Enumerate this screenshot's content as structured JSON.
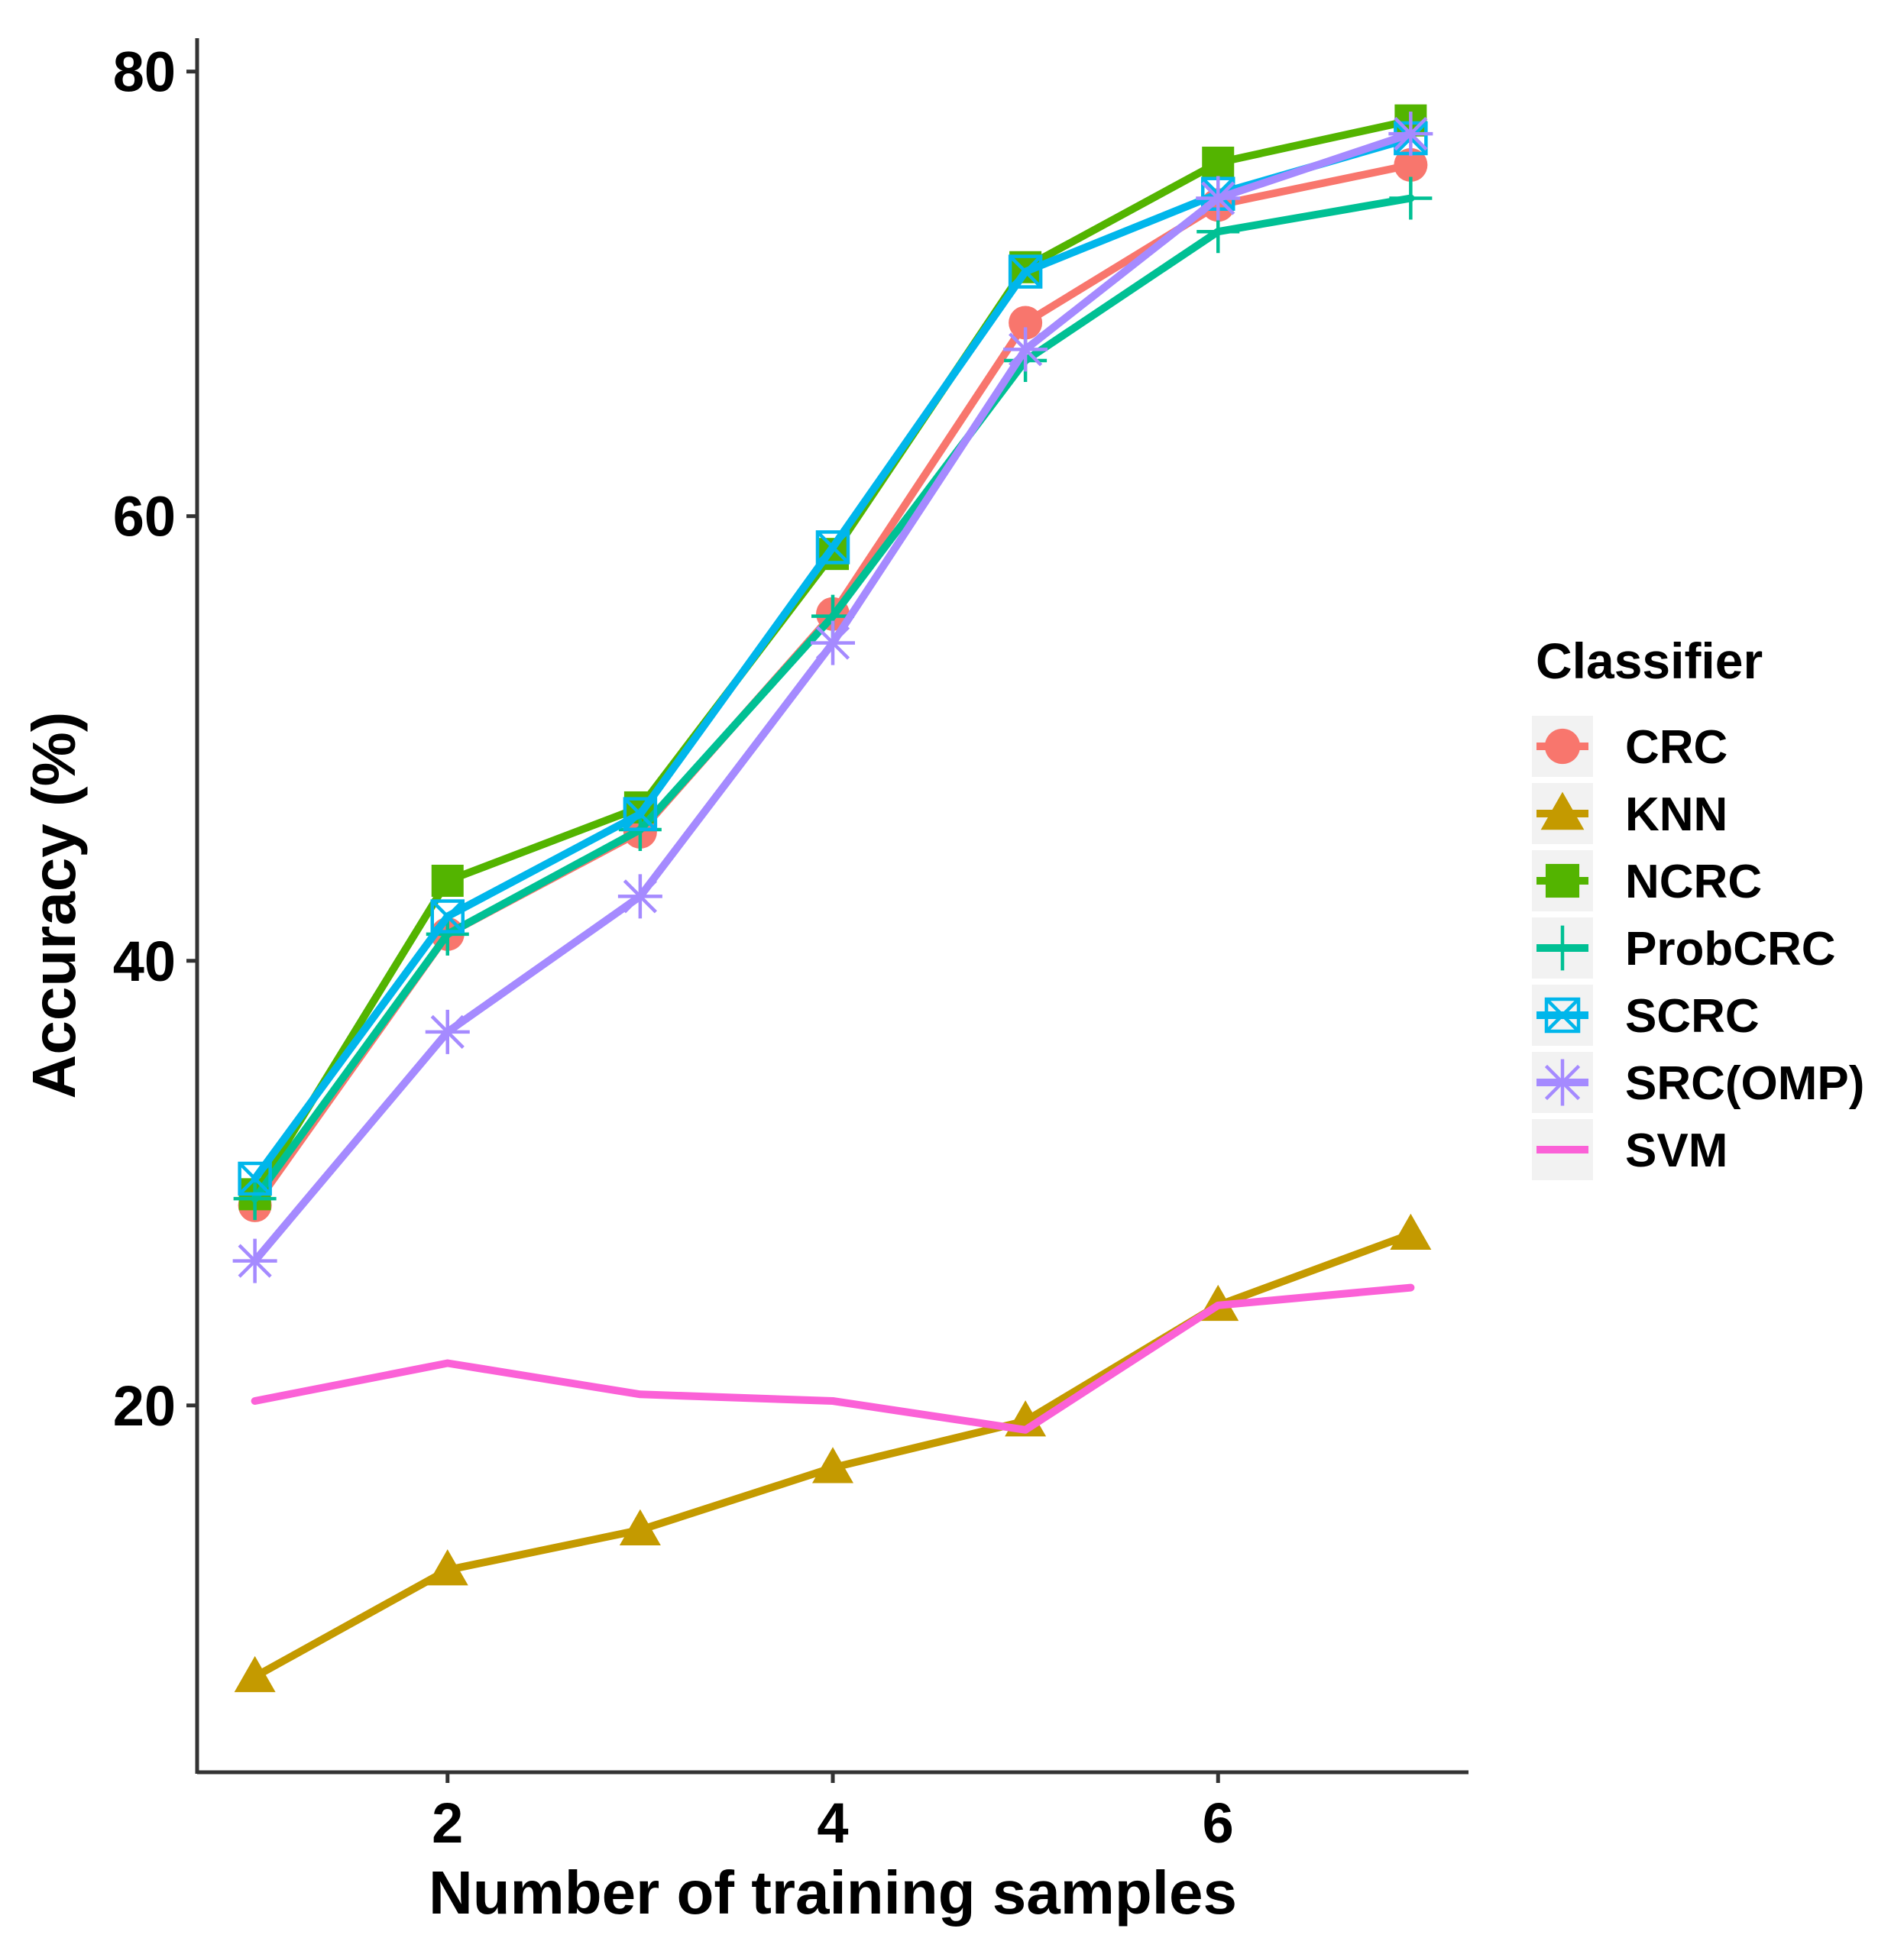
{
  "chart_data": {
    "type": "line",
    "title": "",
    "xlabel": "Number of training samples",
    "ylabel": "Accuracy (%)",
    "xlim": [
      0.7,
      7.3
    ],
    "ylim": [
      3.5,
      81.5
    ],
    "x_ticks": [
      2,
      4,
      6
    ],
    "x_tick_labels": [
      "2",
      "4",
      "6"
    ],
    "y_ticks": [
      20,
      40,
      60,
      80
    ],
    "y_tick_labels": [
      "20",
      "40",
      "60",
      "80"
    ],
    "grid": false,
    "legend": {
      "title": "Classifier",
      "position": "right"
    },
    "x": [
      1,
      2,
      3,
      4,
      5,
      6,
      7
    ],
    "series": [
      {
        "name": "CRC",
        "color": "#F8766D",
        "marker": "circle",
        "values": [
          29.0,
          41.2,
          45.8,
          55.6,
          68.7,
          74.0,
          75.8
        ]
      },
      {
        "name": "KNN",
        "color": "#C49A00",
        "marker": "triangle",
        "values": [
          7.8,
          12.6,
          14.4,
          17.2,
          19.3,
          24.5,
          27.7
        ]
      },
      {
        "name": "NCRC",
        "color": "#53B400",
        "marker": "square",
        "values": [
          29.5,
          43.6,
          46.9,
          58.3,
          71.2,
          75.9,
          77.8
        ]
      },
      {
        "name": "ProbCRC",
        "color": "#00C094",
        "marker": "plus",
        "values": [
          29.3,
          41.2,
          45.9,
          55.5,
          67.0,
          72.8,
          74.3
        ]
      },
      {
        "name": "SCRC",
        "color": "#00B6EB",
        "marker": "square-x",
        "values": [
          30.2,
          42.0,
          46.6,
          58.6,
          71.0,
          74.5,
          77.0
        ]
      },
      {
        "name": "SRC(OMP)",
        "color": "#A58AFF",
        "marker": "asterisk",
        "values": [
          26.5,
          36.8,
          42.9,
          54.3,
          67.5,
          74.3,
          77.2
        ]
      },
      {
        "name": "SVM",
        "color": "#FB61D7",
        "marker": "none",
        "values": [
          20.2,
          21.9,
          20.5,
          20.2,
          18.9,
          24.5,
          25.3
        ]
      }
    ]
  }
}
